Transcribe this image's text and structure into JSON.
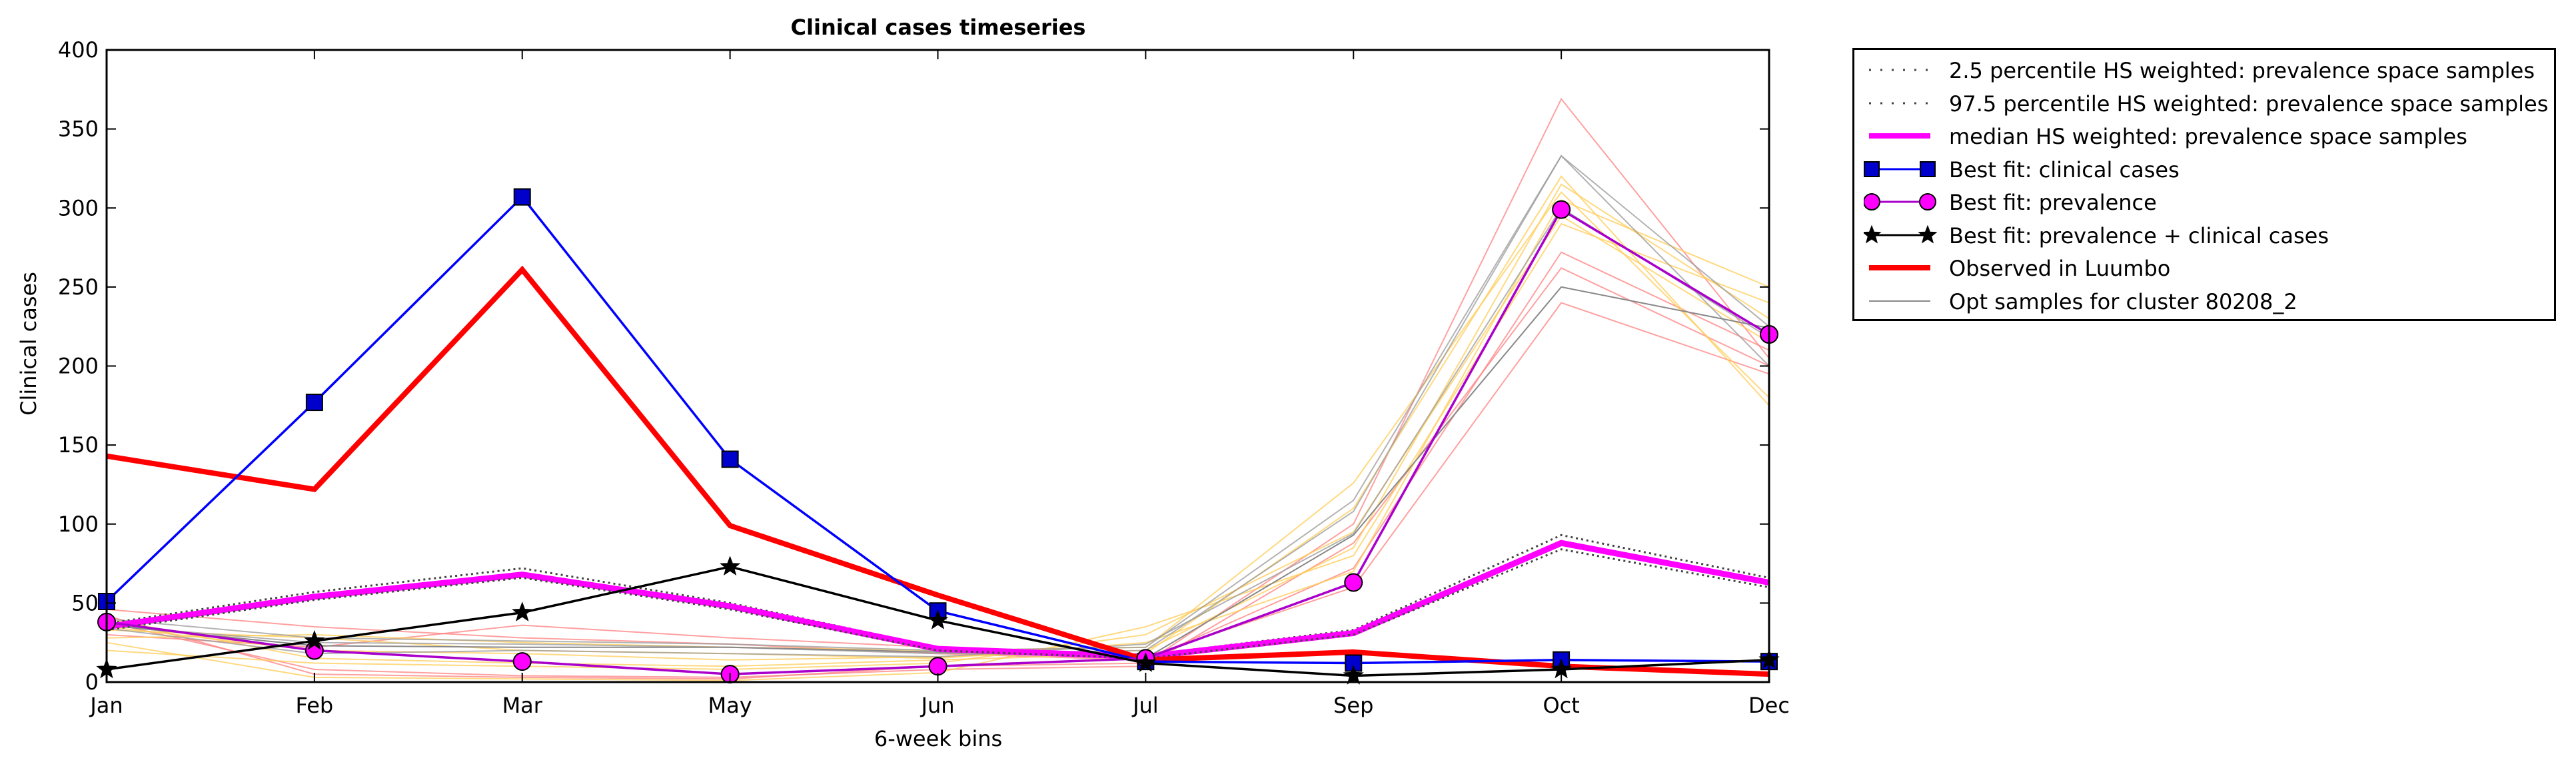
{
  "chart_data": {
    "type": "line",
    "title": "Clinical cases timeseries",
    "xlabel": "6-week bins",
    "ylabel": "Clinical cases",
    "categories": [
      "Jan",
      "Feb",
      "Mar",
      "May",
      "Jun",
      "Jul",
      "Sep",
      "Oct",
      "Dec"
    ],
    "ylim": [
      0,
      400
    ],
    "yticks": [
      0,
      50,
      100,
      150,
      200,
      250,
      300,
      350,
      400
    ],
    "grid": false,
    "legend_position": "outside-right",
    "series": [
      {
        "name": "2.5 percentile HS weighted: prevalence space samples",
        "style": "dotted",
        "color": "#555555",
        "values": [
          33,
          52,
          66,
          46,
          20,
          15,
          30,
          84,
          60
        ]
      },
      {
        "name": "97.5 percentile HS weighted: prevalence space samples",
        "style": "dotted",
        "color": "#555555",
        "values": [
          37,
          57,
          72,
          50,
          22,
          17,
          33,
          93,
          66
        ]
      },
      {
        "name": "median HS weighted: prevalence space samples",
        "style": "solid",
        "color": "#ff00ff",
        "values": [
          35,
          54,
          68,
          48,
          21,
          16,
          31,
          88,
          63
        ]
      },
      {
        "name": "Best fit: clinical cases",
        "style": "square-markers",
        "color": "#0000ff",
        "marker_fill": "#0000cc",
        "values": [
          51,
          177,
          307,
          141,
          45,
          13,
          12,
          14,
          13
        ]
      },
      {
        "name": "Best fit: prevalence",
        "style": "circle-markers",
        "color": "#aa00cc",
        "marker_fill": "#ff00ff",
        "values": [
          38,
          20,
          13,
          5,
          10,
          15,
          63,
          299,
          220
        ]
      },
      {
        "name": "Best fit: prevalence + clinical cases",
        "style": "star-markers",
        "color": "#000000",
        "values": [
          8,
          26,
          44,
          73,
          39,
          12,
          4,
          8,
          14
        ]
      },
      {
        "name": "Observed in Luumbo",
        "style": "thick",
        "color": "#ff0000",
        "values": [
          143,
          122,
          261,
          99,
          55,
          14,
          19,
          10,
          5
        ]
      },
      {
        "name": "Opt samples for cluster 80208_2",
        "style": "thin",
        "color": "#888888",
        "values": [
          36,
          23,
          22,
          22,
          19,
          15,
          93,
          250,
          224
        ]
      }
    ],
    "sample_lines": [
      {
        "color": "#ff8080",
        "values": [
          42,
          5,
          3,
          2,
          10,
          12,
          100,
          369,
          205
        ]
      },
      {
        "color": "#ff8080",
        "values": [
          30,
          22,
          36,
          28,
          22,
          16,
          60,
          240,
          195
        ]
      },
      {
        "color": "#ff8080",
        "values": [
          46,
          35,
          28,
          24,
          18,
          14,
          72,
          272,
          210
        ]
      },
      {
        "color": "#ff8080",
        "values": [
          38,
          8,
          4,
          3,
          8,
          10,
          88,
          262,
          200
        ]
      },
      {
        "color": "#ffcc55",
        "values": [
          28,
          30,
          25,
          22,
          20,
          22,
          126,
          310,
          180
        ]
      },
      {
        "color": "#ffcc55",
        "values": [
          25,
          3,
          2,
          1,
          6,
          35,
          80,
          290,
          240
        ]
      },
      {
        "color": "#ffcc55",
        "values": [
          40,
          15,
          12,
          10,
          14,
          18,
          110,
          320,
          175
        ]
      },
      {
        "color": "#ffcc55",
        "values": [
          33,
          28,
          20,
          18,
          15,
          25,
          70,
          305,
          250
        ]
      },
      {
        "color": "#ffcc55",
        "values": [
          20,
          12,
          10,
          8,
          12,
          30,
          95,
          295,
          215
        ]
      },
      {
        "color": "#ffcc55",
        "values": [
          35,
          20,
          18,
          14,
          16,
          20,
          85,
          315,
          230
        ]
      },
      {
        "color": "#999999",
        "values": [
          36,
          25,
          24,
          22,
          18,
          20,
          108,
          333,
          225
        ]
      },
      {
        "color": "#999999",
        "values": [
          34,
          18,
          20,
          18,
          16,
          24,
          94,
          300,
          218
        ]
      },
      {
        "color": "#999999",
        "values": [
          40,
          28,
          26,
          24,
          20,
          22,
          115,
          333,
          200
        ]
      }
    ]
  }
}
